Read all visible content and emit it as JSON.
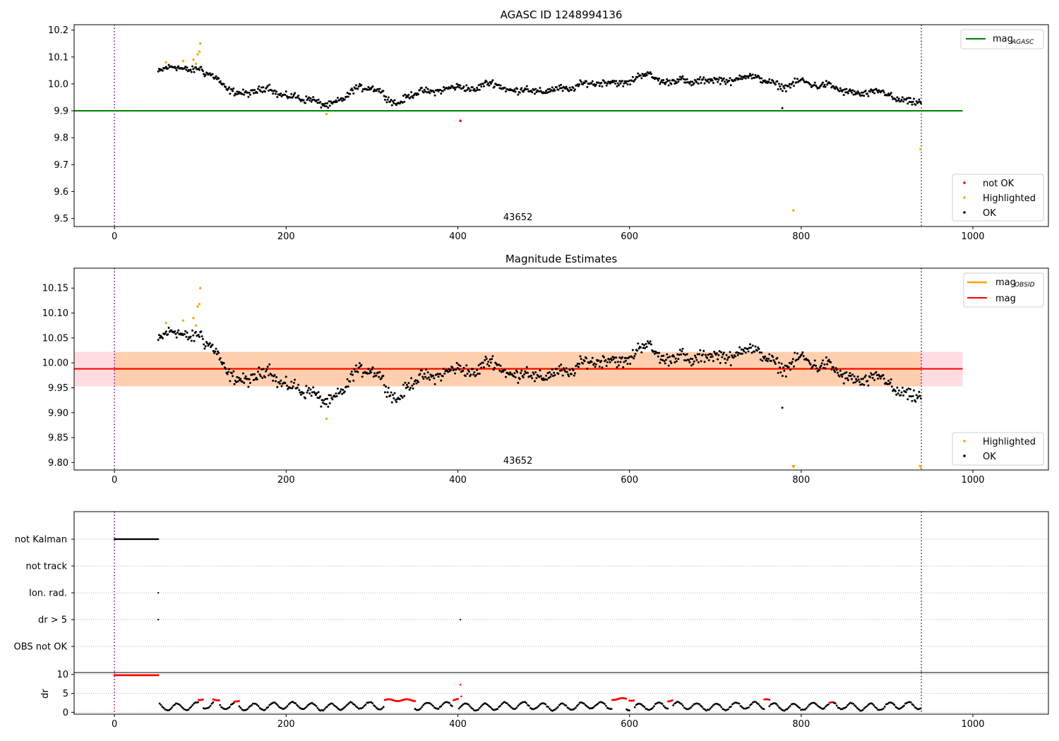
{
  "chart_data": [
    {
      "type": "scatter",
      "title": "AGASC ID 1248994136",
      "xlim": [
        -47,
        1088
      ],
      "ylim": [
        9.47,
        10.22
      ],
      "xticks": [
        0,
        200,
        400,
        600,
        800,
        1000
      ],
      "yticks": [
        9.5,
        9.6,
        9.7,
        9.8,
        9.9,
        10.0,
        10.1,
        10.2
      ],
      "xtick_labels": [
        "0",
        "200",
        "400",
        "600",
        "800",
        "1000"
      ],
      "ytick_labels": [
        "9.5",
        "9.6",
        "9.7",
        "9.8",
        "9.9",
        "10.0",
        "10.1",
        "10.2"
      ],
      "obsid_label": "43652",
      "obsid_label_x": 470,
      "vlines": [
        0,
        940
      ],
      "mag_agasc": 9.9,
      "mag_line_xrange": [
        -47,
        988
      ],
      "legend_top": {
        "placement": "top-right",
        "entries": [
          {
            "label": "mag",
            "sub": "AGASC",
            "color": "#008000"
          }
        ]
      },
      "legend_bottom": {
        "placement": "bottom-right",
        "entries": [
          {
            "label": "not OK",
            "color": "#ff0000"
          },
          {
            "label": "Highlighted",
            "color": "#ffa500"
          },
          {
            "label": "OK",
            "color": "#000000"
          }
        ]
      },
      "series_anchors": {
        "x": [
          52,
          60,
          70,
          80,
          90,
          100,
          105,
          112,
          120,
          130,
          140,
          150,
          160,
          170,
          180,
          190,
          200,
          210,
          220,
          230,
          240,
          250,
          260,
          270,
          280,
          290,
          300,
          310,
          320,
          330,
          340,
          350,
          360,
          370,
          380,
          390,
          400,
          410,
          420,
          430,
          440,
          450,
          460,
          470,
          480,
          490,
          500,
          510,
          520,
          530,
          540,
          550,
          560,
          570,
          580,
          590,
          600,
          610,
          620,
          630,
          640,
          650,
          660,
          670,
          680,
          690,
          700,
          710,
          720,
          730,
          740,
          750,
          760,
          770,
          780,
          790,
          800,
          810,
          820,
          830,
          840,
          850,
          860,
          870,
          880,
          890,
          900,
          910,
          920,
          930,
          940
        ],
        "y": [
          10.045,
          10.06,
          10.065,
          10.055,
          10.05,
          10.06,
          10.04,
          10.035,
          10.02,
          9.98,
          9.97,
          9.965,
          9.965,
          9.98,
          9.99,
          9.96,
          9.955,
          9.955,
          9.94,
          9.945,
          9.925,
          9.92,
          9.935,
          9.95,
          9.985,
          9.985,
          9.985,
          9.975,
          9.94,
          9.925,
          9.95,
          9.965,
          9.975,
          9.97,
          9.975,
          9.985,
          9.99,
          9.985,
          9.975,
          10.0,
          10.005,
          9.99,
          9.975,
          9.975,
          9.985,
          9.97,
          9.97,
          9.98,
          9.985,
          9.975,
          9.995,
          10.005,
          10.0,
          10.005,
          10.01,
          10.0,
          10.005,
          10.03,
          10.04,
          10.02,
          10.005,
          10.01,
          10.02,
          10.0,
          10.01,
          10.015,
          10.015,
          10.015,
          10.005,
          10.03,
          10.03,
          10.02,
          10.01,
          10.0,
          9.985,
          10.0,
          10.015,
          10.0,
          9.99,
          10.0,
          9.985,
          9.97,
          9.97,
          9.96,
          9.965,
          9.975,
          9.965,
          9.94,
          9.94,
          9.93,
          9.935
        ]
      },
      "highlighted_points": [
        [
          60,
          10.08
        ],
        [
          80,
          10.085
        ],
        [
          92,
          10.09
        ],
        [
          95,
          10.075
        ],
        [
          97,
          10.11
        ],
        [
          99,
          10.12
        ],
        [
          100,
          10.15
        ],
        [
          247,
          9.888
        ],
        [
          791,
          9.53
        ],
        [
          939,
          9.757
        ]
      ],
      "not_ok_points": [
        [
          403,
          9.863
        ]
      ],
      "outlier_points": [
        [
          778,
          9.91
        ]
      ]
    },
    {
      "type": "scatter",
      "title": "Magnitude Estimates",
      "xlim": [
        -47,
        1088
      ],
      "ylim": [
        9.785,
        10.19
      ],
      "xticks": [
        0,
        200,
        400,
        600,
        800,
        1000
      ],
      "yticks": [
        9.8,
        9.85,
        9.9,
        9.95,
        10.0,
        10.05,
        10.1,
        10.15
      ],
      "xtick_labels": [
        "0",
        "200",
        "400",
        "600",
        "800",
        "1000"
      ],
      "ytick_labels": [
        "9.80",
        "9.85",
        "9.90",
        "9.95",
        "10.00",
        "10.05",
        "10.10",
        "10.15"
      ],
      "obsid_label": "43652",
      "obsid_label_x": 470,
      "vlines": [
        0,
        940
      ],
      "mag": 9.988,
      "mag_band": [
        9.953,
        10.022
      ],
      "mag_line_xrange": [
        -47,
        988
      ],
      "obsid_band_xrange": [
        0,
        940
      ],
      "legend_top": {
        "placement": "top-right",
        "entries": [
          {
            "label": "mag",
            "sub": "OBSID",
            "color": "#ffa500"
          },
          {
            "label": "mag",
            "sub": "",
            "color": "#ff0000"
          }
        ]
      },
      "legend_bottom": {
        "placement": "bottom-right",
        "entries": [
          {
            "label": "Highlighted",
            "color": "#ffa500"
          },
          {
            "label": "OK",
            "color": "#000000"
          }
        ]
      },
      "highlighted_points": [
        [
          60,
          10.08
        ],
        [
          80,
          10.085
        ],
        [
          92,
          10.09
        ],
        [
          95,
          10.075
        ],
        [
          97,
          10.113
        ],
        [
          99,
          10.118
        ],
        [
          100,
          10.15
        ],
        [
          247,
          9.888
        ]
      ],
      "clipped_highlight_x": [
        791,
        939
      ],
      "outlier_points": [
        [
          778,
          9.91
        ]
      ]
    },
    {
      "type": "scatter",
      "title": "",
      "xlim": [
        -47,
        1088
      ],
      "xticks": [
        0,
        200,
        400,
        600,
        800,
        1000
      ],
      "xtick_labels": [
        "0",
        "200",
        "400",
        "600",
        "800",
        "1000"
      ],
      "vlines": [
        0,
        940
      ],
      "flags": [
        "not Kalman",
        "not track",
        "Ion. rad.",
        "dr > 5",
        "OBS not OK"
      ],
      "flag_points": {
        "not Kalman": {
          "from": 0,
          "to": 51,
          "step": 1
        },
        "Ion. rad.": [
          51
        ],
        "dr > 5": [
          51,
          403
        ]
      },
      "dr_label": "dr",
      "dr_ylim": [
        -0.5,
        10.5
      ],
      "dr_yticks": [
        0,
        5,
        10
      ],
      "dr_ytick_labels": [
        "0",
        "5",
        "10"
      ],
      "dr_red_segments": [
        {
          "from": 0,
          "to": 51,
          "value": 9.8
        },
        {
          "from": 98,
          "to": 103,
          "value": 3.5
        },
        {
          "from": 115,
          "to": 122,
          "value": 3.4
        },
        {
          "from": 140,
          "to": 145,
          "value": 3.1
        },
        {
          "from": 315,
          "to": 350,
          "value": 3.2
        },
        {
          "from": 395,
          "to": 400,
          "value": 3.4
        },
        {
          "from": 580,
          "to": 596,
          "value": 3.5
        },
        {
          "from": 600,
          "to": 605,
          "value": 3.3
        },
        {
          "from": 645,
          "to": 650,
          "value": 3.1
        },
        {
          "from": 757,
          "to": 763,
          "value": 3.2
        },
        {
          "from": 833,
          "to": 836,
          "value": 2.8
        }
      ],
      "dr_red_points": [
        [
          403,
          7.3
        ],
        [
          404,
          4.2
        ]
      ]
    }
  ]
}
